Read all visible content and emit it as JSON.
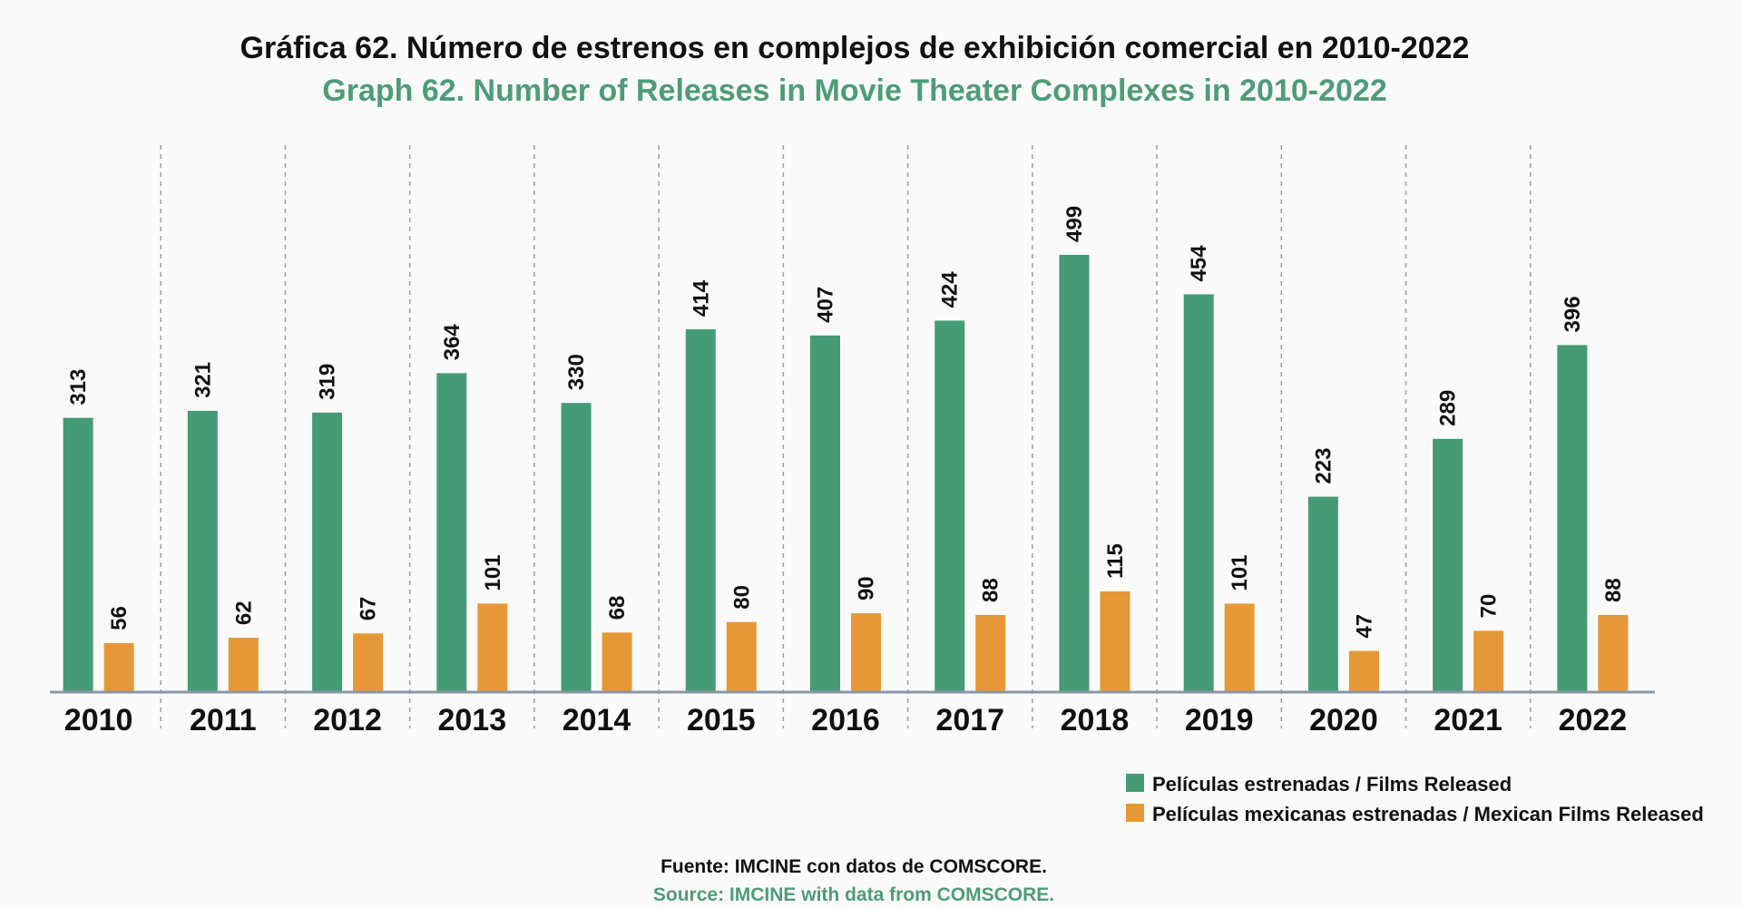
{
  "title": "Gráfica 62. Número de estrenos en complejos de exhibición comercial en 2010-2022",
  "subtitle": "Graph 62. Number of Releases in Movie Theater Complexes in 2010-2022",
  "source_es": "Fuente: IMCINE con datos de COMSCORE.",
  "source_en": "Source: IMCINE with data from COMSCORE.",
  "colors": {
    "films": "#449b76",
    "mexican": "#e69836",
    "accent_text": "#4e9c78",
    "axis": "#8a97a8",
    "grid": "#9aa0a8"
  },
  "chart_data": {
    "type": "bar",
    "categories": [
      "2010",
      "2011",
      "2012",
      "2013",
      "2014",
      "2015",
      "2016",
      "2017",
      "2018",
      "2019",
      "2020",
      "2021",
      "2022"
    ],
    "series": [
      {
        "name": "Películas estrenadas / Films Released",
        "values": [
          313,
          321,
          319,
          364,
          330,
          414,
          407,
          424,
          499,
          454,
          223,
          289,
          396
        ]
      },
      {
        "name": "Películas mexicanas estrenadas / Mexican Films Released",
        "values": [
          56,
          62,
          67,
          101,
          68,
          80,
          90,
          88,
          115,
          101,
          47,
          70,
          88
        ]
      }
    ],
    "ylim": [
      0,
      500
    ],
    "grid": "vertical dashed separators between years",
    "legend_position": "bottom-right",
    "data_labels": "rotated vertical above bars"
  }
}
